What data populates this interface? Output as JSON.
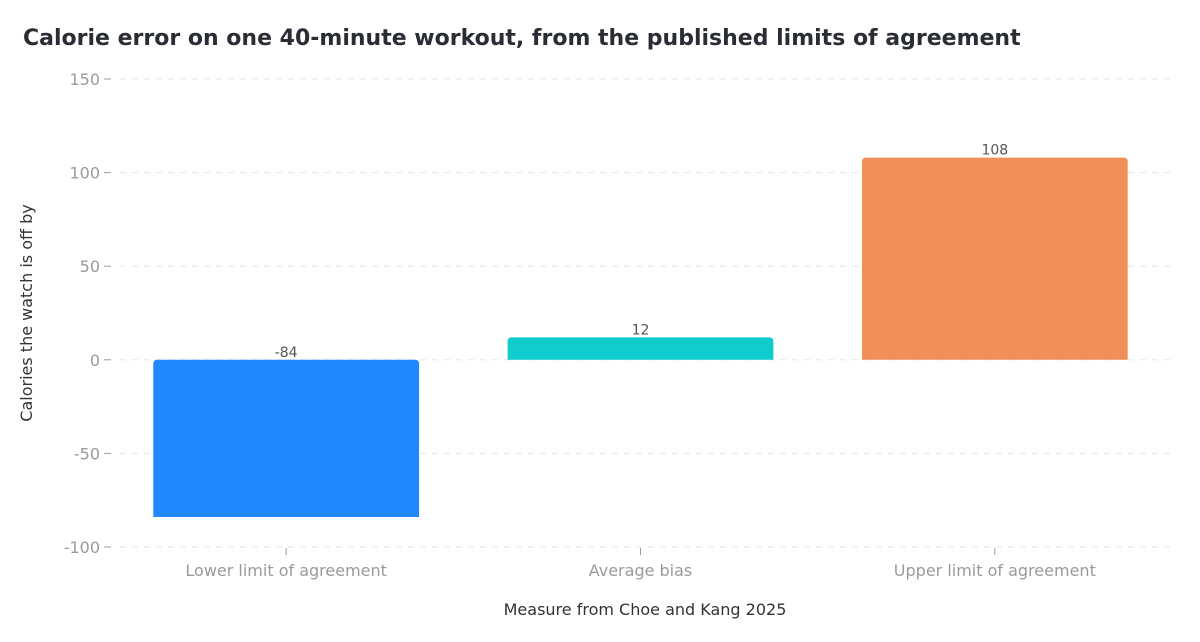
{
  "chart_data": {
    "type": "bar",
    "title": "Calorie error on one 40-minute workout, from the published limits of agreement",
    "xlabel": "Measure from Choe and Kang 2025",
    "ylabel": "Calories the watch is off by",
    "categories": [
      "Lower limit of agreement",
      "Average bias",
      "Upper limit of agreement"
    ],
    "values": [
      -84,
      12,
      108
    ],
    "value_labels": [
      "-84",
      "12",
      "108"
    ],
    "colors": [
      "#2288ff",
      "#11cccc",
      "#f08f57"
    ],
    "ylim": [
      -100,
      150
    ],
    "yticks": [
      -100,
      -50,
      0,
      50,
      100,
      150
    ],
    "ytick_labels": [
      "-100",
      "-50",
      "0",
      "50",
      "100",
      "150"
    ],
    "grid": true,
    "legend": "none"
  }
}
